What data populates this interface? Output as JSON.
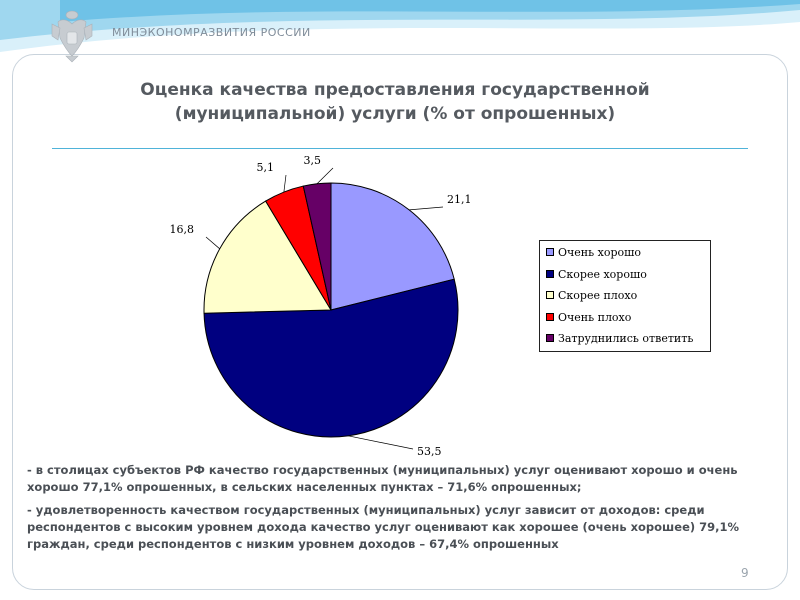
{
  "header": {
    "ministry": "МИНЭКОНОМРАЗВИТИЯ РОССИИ",
    "band_color": "#7ec9ea"
  },
  "slide": {
    "title_line1": "Оценка качества предоставления государственной",
    "title_line2": "(муниципальной) услуги (% от опрошенных)",
    "page_number": "9"
  },
  "chart_data": {
    "type": "pie",
    "title": "",
    "categories": [
      "Очень хорошо",
      "Скорее хорошо",
      "Скорее плохо",
      "Очень плохо",
      "Затруднились ответить"
    ],
    "values": [
      21.1,
      53.5,
      16.8,
      5.1,
      3.5
    ],
    "labels": [
      "21,1",
      "53,5",
      "16,8",
      "5,1",
      "3,5"
    ],
    "colors": [
      "#9999ff",
      "#000080",
      "#ffffcc",
      "#ff0000",
      "#660066"
    ],
    "start_angle_deg": 0,
    "direction": "clockwise",
    "legend": "right",
    "legend_entries": [
      "Очень хорошо",
      "Скорее хорошо",
      "Скорее плохо",
      "Очень плохо",
      "Затруднились ответить"
    ]
  },
  "notes": [
    "- в столицах субъектов РФ качество государственных (муниципальных) услуг оценивают хорошо и очень хорошо  77,1% опрошенных, в сельских населенных пунктах – 71,6% опрошенных;",
    "- удовлетворенность качеством государственных (муниципальных) услуг зависит от доходов: среди респондентов с высоким уровнем дохода качество услуг оценивают как хорошее (очень хорошее) 79,1% граждан, среди респондентов с низким уровнем доходов – 67,4% опрошенных"
  ]
}
